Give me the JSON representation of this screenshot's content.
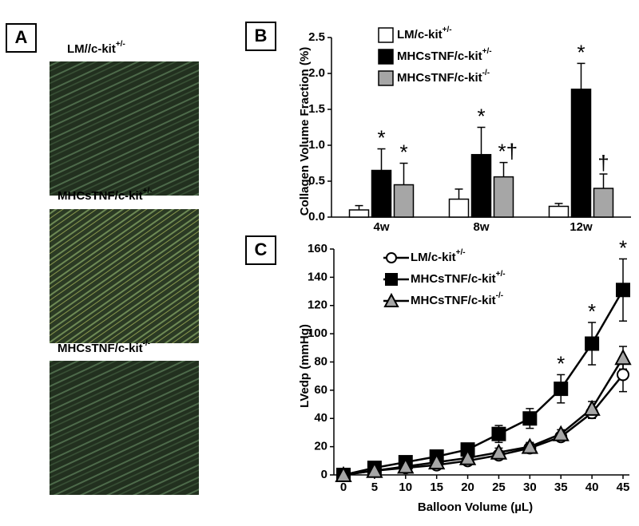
{
  "panels": {
    "A": {
      "label": "A",
      "images": [
        {
          "caption": {
            "text": "LM//c-kit",
            "sup": "+/-"
          }
        },
        {
          "caption": {
            "text": "MHCsTNF/c-kit",
            "sup": "+/-"
          }
        },
        {
          "caption": {
            "text": "MHCsTNF/c-kit",
            "sup": "-/-"
          }
        }
      ]
    }
  },
  "chart_data": [
    {
      "type": "bar",
      "panel_label": "B",
      "ylabel": "Collagen Volume Fraction (%)",
      "categories": [
        "4w",
        "8w",
        "12w"
      ],
      "ylim": [
        0,
        2.5
      ],
      "yticks": [
        {
          "value": 0,
          "label": "0.0"
        },
        {
          "value": 0.5,
          "label": "0.5"
        },
        {
          "value": 1,
          "label": "1.0"
        },
        {
          "value": 1.5,
          "label": "1.5"
        },
        {
          "value": 2,
          "label": "2.0"
        },
        {
          "value": 2.5,
          "label": "2.5"
        }
      ],
      "series": [
        {
          "name": "LM/c-kit",
          "name_sup": "+/-",
          "color": "#ffffff",
          "values": [
            0.1,
            0.25,
            0.15
          ],
          "errors": [
            0.06,
            0.14,
            0.04
          ]
        },
        {
          "name": "MHCsTNF/c-kit",
          "name_sup": "+/-",
          "color": "#000000",
          "values": [
            0.65,
            0.87,
            1.78
          ],
          "errors": [
            0.3,
            0.38,
            0.36
          ]
        },
        {
          "name": "MHCsTNF/c-kit",
          "name_sup": "-/-",
          "color": "#a6a6a6",
          "values": [
            0.45,
            0.56,
            0.4
          ],
          "errors": [
            0.3,
            0.2,
            0.2
          ]
        }
      ],
      "annotations": [
        {
          "text": "*",
          "series": 1,
          "category": 0
        },
        {
          "text": "*",
          "series": 2,
          "category": 0
        },
        {
          "text": "*",
          "series": 1,
          "category": 1
        },
        {
          "text": "*†",
          "series": 2,
          "category": 1
        },
        {
          "text": "*",
          "series": 1,
          "category": 2
        },
        {
          "text": "†",
          "series": 2,
          "category": 2
        }
      ]
    },
    {
      "type": "line",
      "panel_label": "C",
      "xlabel": "Balloon Volume (µL)",
      "ylabel": "LVedp (mmHg)",
      "x": [
        0,
        5,
        10,
        15,
        20,
        25,
        30,
        35,
        40,
        45
      ],
      "xlim": [
        0,
        45
      ],
      "xticks": [
        0,
        5,
        10,
        15,
        20,
        25,
        30,
        35,
        40,
        45
      ],
      "ylim": [
        0,
        160
      ],
      "yticks": [
        0,
        20,
        40,
        60,
        80,
        100,
        120,
        140,
        160
      ],
      "series": [
        {
          "name": "LM/c-kit",
          "name_sup": "+/-",
          "color": "#000000",
          "marker": "circle",
          "marker_fill": "#ffffff",
          "values": [
            0,
            3,
            5,
            7,
            10,
            14,
            19,
            27,
            44,
            71
          ],
          "errors": [
            1,
            1,
            1,
            2,
            2,
            3,
            3,
            3,
            4,
            12
          ]
        },
        {
          "name": "MHCsTNF/c-kit",
          "name_sup": "+/-",
          "color": "#000000",
          "marker": "square",
          "marker_fill": "#000000",
          "values": [
            0,
            5,
            9,
            13,
            18,
            29,
            40,
            61,
            93,
            131
          ],
          "errors": [
            1,
            2,
            2,
            3,
            3,
            6,
            7,
            10,
            15,
            22
          ]
        },
        {
          "name": "MHCsTNF/c-kit",
          "name_sup": "-/-",
          "color": "#000000",
          "marker": "triangle",
          "marker_fill": "#a6a6a6",
          "values": [
            0,
            3,
            6,
            9,
            12,
            16,
            20,
            29,
            47,
            83
          ],
          "errors": [
            1,
            1,
            1,
            2,
            2,
            3,
            3,
            3,
            5,
            8
          ]
        }
      ],
      "annotations": [
        {
          "text": "*",
          "series": 1,
          "index": 7
        },
        {
          "text": "*",
          "series": 1,
          "index": 8
        },
        {
          "text": "*",
          "series": 1,
          "index": 9
        }
      ]
    }
  ]
}
